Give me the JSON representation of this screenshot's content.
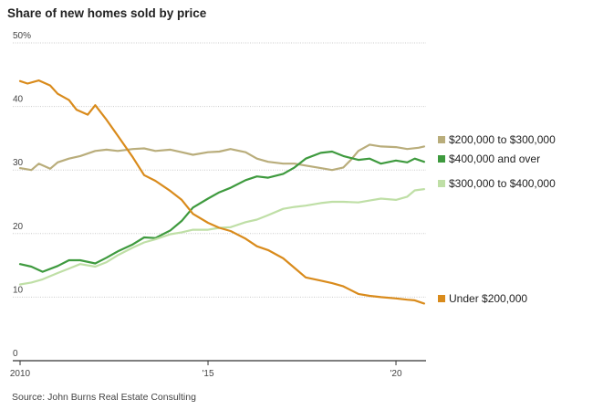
{
  "title": "Share of new homes sold by price",
  "source": "Source: John Burns Real Estate Consulting",
  "colors": {
    "s200_300": "#b9ad7b",
    "s400_plus": "#3e9a3e",
    "s300_400": "#bfdfa6",
    "under200": "#d98b1c",
    "grid": "#cccccc",
    "axis": "#333333"
  },
  "chart_data": {
    "type": "line",
    "title": "Share of new homes sold by price",
    "xlabel": "",
    "ylabel": "",
    "xlim": [
      2010,
      2020.8
    ],
    "ylim": [
      0,
      50
    ],
    "x_ticks": [
      {
        "value": 2010,
        "label": "2010"
      },
      {
        "value": 2015,
        "label": "'15"
      },
      {
        "value": 2020,
        "label": "'20"
      }
    ],
    "y_ticks": [
      {
        "value": 50,
        "label": "50%"
      },
      {
        "value": 40,
        "label": "40"
      },
      {
        "value": 30,
        "label": "30"
      },
      {
        "value": 20,
        "label": "20"
      },
      {
        "value": 10,
        "label": "10"
      },
      {
        "value": 0,
        "label": "0"
      }
    ],
    "grid": true,
    "legend": "right, at line ends",
    "series": [
      {
        "name": "$200,000 to $300,000",
        "color_key": "s200_300",
        "x": [
          2010.0,
          2010.3,
          2010.5,
          2010.8,
          2011.0,
          2011.3,
          2011.6,
          2012.0,
          2012.3,
          2012.6,
          2013.0,
          2013.3,
          2013.6,
          2014.0,
          2014.3,
          2014.6,
          2015.0,
          2015.3,
          2015.6,
          2016.0,
          2016.3,
          2016.6,
          2017.0,
          2017.3,
          2017.6,
          2018.0,
          2018.3,
          2018.6,
          2018.8,
          2019.0,
          2019.3,
          2019.6,
          2020.0,
          2020.3,
          2020.6,
          2020.75
        ],
        "y": [
          30.3,
          30.0,
          31.0,
          30.2,
          31.2,
          31.8,
          32.2,
          33.0,
          33.2,
          33.0,
          33.3,
          33.4,
          33.0,
          33.2,
          32.8,
          32.4,
          32.8,
          32.9,
          33.3,
          32.8,
          31.8,
          31.3,
          31.0,
          31.0,
          30.7,
          30.3,
          30.0,
          30.4,
          31.6,
          33.0,
          34.0,
          33.7,
          33.6,
          33.3,
          33.5,
          33.7
        ]
      },
      {
        "name": "$400,000 and over",
        "color_key": "s400_plus",
        "x": [
          2010.0,
          2010.3,
          2010.6,
          2011.0,
          2011.3,
          2011.6,
          2012.0,
          2012.3,
          2012.6,
          2013.0,
          2013.3,
          2013.6,
          2014.0,
          2014.3,
          2014.6,
          2015.0,
          2015.3,
          2015.6,
          2016.0,
          2016.3,
          2016.6,
          2017.0,
          2017.3,
          2017.6,
          2018.0,
          2018.3,
          2018.6,
          2019.0,
          2019.3,
          2019.6,
          2020.0,
          2020.3,
          2020.5,
          2020.75
        ],
        "y": [
          15.2,
          14.8,
          14.0,
          14.9,
          15.8,
          15.8,
          15.3,
          16.2,
          17.2,
          18.3,
          19.4,
          19.3,
          20.5,
          22.0,
          24.1,
          25.5,
          26.5,
          27.2,
          28.4,
          29.0,
          28.8,
          29.4,
          30.4,
          31.8,
          32.7,
          32.9,
          32.2,
          31.6,
          31.8,
          31.0,
          31.5,
          31.2,
          31.8,
          31.3
        ]
      },
      {
        "name": "$300,000 to $400,000",
        "color_key": "s300_400",
        "x": [
          2010.0,
          2010.3,
          2010.6,
          2011.0,
          2011.3,
          2011.6,
          2012.0,
          2012.3,
          2012.6,
          2013.0,
          2013.3,
          2013.6,
          2014.0,
          2014.3,
          2014.6,
          2015.0,
          2015.3,
          2015.6,
          2016.0,
          2016.3,
          2016.6,
          2017.0,
          2017.3,
          2017.6,
          2018.0,
          2018.3,
          2018.6,
          2019.0,
          2019.3,
          2019.6,
          2020.0,
          2020.3,
          2020.5,
          2020.75
        ],
        "y": [
          12.0,
          12.3,
          12.8,
          13.8,
          14.5,
          15.2,
          14.8,
          15.5,
          16.6,
          17.8,
          18.6,
          19.1,
          19.9,
          20.2,
          20.6,
          20.6,
          20.9,
          21.0,
          21.8,
          22.2,
          22.9,
          23.9,
          24.2,
          24.4,
          24.8,
          25.0,
          25.0,
          24.9,
          25.2,
          25.5,
          25.3,
          25.8,
          26.8,
          27.0
        ]
      },
      {
        "name": "Under $200,000",
        "color_key": "under200",
        "x": [
          2010.0,
          2010.2,
          2010.5,
          2010.8,
          2011.0,
          2011.3,
          2011.5,
          2011.8,
          2012.0,
          2012.3,
          2012.6,
          2013.0,
          2013.3,
          2013.6,
          2014.0,
          2014.3,
          2014.6,
          2015.0,
          2015.3,
          2015.6,
          2016.0,
          2016.3,
          2016.6,
          2017.0,
          2017.3,
          2017.6,
          2018.0,
          2018.3,
          2018.6,
          2019.0,
          2019.3,
          2019.6,
          2020.0,
          2020.3,
          2020.5,
          2020.75
        ],
        "y": [
          44.0,
          43.6,
          44.1,
          43.3,
          42.0,
          41.0,
          39.5,
          38.7,
          40.2,
          37.9,
          35.4,
          32.0,
          29.2,
          28.3,
          26.7,
          25.3,
          23.1,
          21.7,
          20.9,
          20.4,
          19.2,
          18.0,
          17.4,
          16.1,
          14.6,
          13.1,
          12.6,
          12.2,
          11.7,
          10.5,
          10.2,
          10.0,
          9.8,
          9.6,
          9.5,
          9.0
        ]
      }
    ]
  }
}
